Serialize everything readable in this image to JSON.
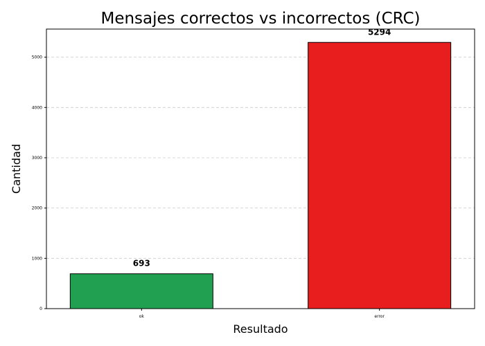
{
  "chart_data": {
    "type": "bar",
    "title": "Mensajes correctos vs incorrectos (CRC)",
    "xlabel": "Resultado",
    "ylabel": "Cantidad",
    "categories": [
      "ok",
      "error"
    ],
    "values": [
      693,
      5294
    ],
    "data_labels": [
      "693",
      "5294"
    ],
    "colors": [
      "#22a052",
      "#e81e1e"
    ],
    "edge_color": "#000000",
    "ylim": [
      0,
      5559
    ],
    "yticks": [
      0,
      1000,
      2000,
      3000,
      4000,
      5000
    ],
    "ytick_labels": [
      "0",
      "1000",
      "2000",
      "3000",
      "4000",
      "5000"
    ],
    "grid": true,
    "grid_axis": "y"
  }
}
